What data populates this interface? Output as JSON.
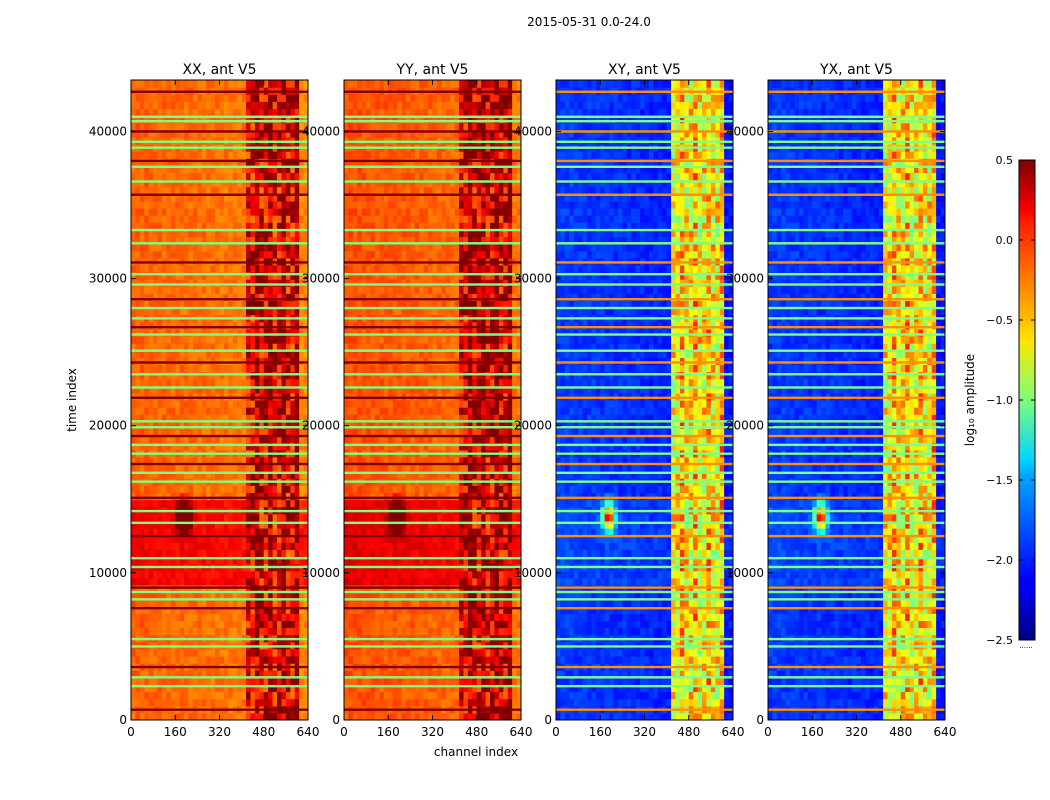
{
  "chart_data": {
    "type": "heatmap",
    "suptitle": "2015-05-31 0.0-24.0",
    "xlabel": "channel index",
    "ylabel": "time index",
    "xlim": [
      0,
      640
    ],
    "ylim": [
      0,
      43500
    ],
    "xticks": [
      0,
      160,
      320,
      480,
      640
    ],
    "yticks": [
      0,
      10000,
      20000,
      30000,
      40000
    ],
    "colormap": "jet",
    "colorbar": {
      "label": "log₁₀ amplitude",
      "range": [
        -2.5,
        0.5
      ],
      "ticks": [
        0.5,
        0.0,
        -0.5,
        -1.0,
        -1.5,
        -2.0,
        -2.5
      ],
      "tick_labels": [
        "0.5",
        "0.0",
        "−0.5",
        "−1.0",
        "−1.5",
        "−2.0",
        "−2.5"
      ],
      "footer": "......"
    },
    "panels": [
      {
        "title": "XX, ant V5",
        "base": -0.15,
        "rfi_base": 0.2,
        "show_ylabels": true
      },
      {
        "title": "YY, ant V5",
        "base": -0.1,
        "rfi_base": 0.25,
        "show_ylabels": true
      },
      {
        "title": "XY, ant V5",
        "base": -1.95,
        "rfi_base": -0.6,
        "show_ylabels": true
      },
      {
        "title": "YX, ant V5",
        "base": -1.95,
        "rfi_base": -0.6,
        "show_ylabels": true
      }
    ],
    "features": {
      "rfi_channel_range": [
        410,
        610
      ],
      "elevated_time_range": [
        9200,
        15000
      ],
      "bright_spot": {
        "channel": 190,
        "time": 13800
      },
      "flagged_rows": [
        700,
        2300,
        2900,
        3600,
        5000,
        5500,
        7600,
        8200,
        8700,
        9000,
        10400,
        11000,
        12500,
        13400,
        14200,
        15100,
        16200,
        16800,
        17400,
        18100,
        18700,
        19300,
        19900,
        20300,
        21900,
        22600,
        23500,
        24300,
        25100,
        26200,
        26700,
        27300,
        28000,
        28600,
        29600,
        30300,
        31100,
        32400,
        33300,
        35700,
        36600,
        37600,
        38000,
        38900,
        39300,
        40000,
        40700,
        41000,
        42700
      ]
    }
  }
}
